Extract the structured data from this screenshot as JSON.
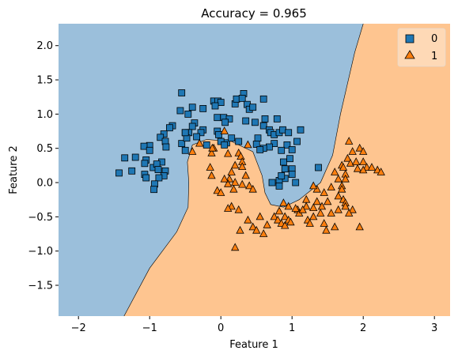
{
  "chart_data": {
    "type": "scatter",
    "title": "Accuracy = 0.965",
    "xlabel": "Feature 1",
    "ylabel": "Feature 2",
    "xlim": [
      -2.28,
      3.22
    ],
    "ylim": [
      -1.95,
      2.32
    ],
    "x_ticks": [
      -2,
      -1,
      0,
      1,
      2,
      3
    ],
    "y_ticks": [
      -1.5,
      -1.0,
      -0.5,
      0.0,
      0.5,
      1.0,
      1.5,
      2.0
    ],
    "x_tick_labels": [
      "−2",
      "−1",
      "0",
      "1",
      "2",
      "3"
    ],
    "y_tick_labels": [
      "−1.5",
      "−1.0",
      "−0.5",
      "0.0",
      "0.5",
      "1.0",
      "1.5",
      "2.0"
    ],
    "grid": false,
    "legend_position": "top-right",
    "region_colors": {
      "0": "#9bbfdb",
      "1": "#fec590"
    },
    "decision_boundary": [
      [
        -1.36,
        -1.95
      ],
      [
        -1.0,
        -1.25
      ],
      [
        -0.62,
        -0.72
      ],
      [
        -0.46,
        -0.36
      ],
      [
        -0.45,
        0.0
      ],
      [
        -0.47,
        0.3
      ],
      [
        -0.4,
        0.55
      ],
      [
        -0.2,
        0.63
      ],
      [
        0.15,
        0.6
      ],
      [
        0.45,
        0.45
      ],
      [
        0.58,
        0.1
      ],
      [
        0.62,
        -0.15
      ],
      [
        0.7,
        -0.32
      ],
      [
        0.88,
        -0.36
      ],
      [
        1.1,
        -0.25
      ],
      [
        1.4,
        0.0
      ],
      [
        1.57,
        0.4
      ],
      [
        1.68,
        1.0
      ],
      [
        1.78,
        1.45
      ],
      [
        1.88,
        1.9
      ],
      [
        2.0,
        2.32
      ]
    ],
    "series": [
      {
        "name": "0",
        "marker": "square",
        "color": "#1f77b4",
        "points": [
          [
            -0.55,
            1.31
          ],
          [
            -0.57,
            1.05
          ],
          [
            -0.46,
            1.0
          ],
          [
            -0.37,
            0.87
          ],
          [
            -0.4,
            0.82
          ],
          [
            -0.45,
            0.73
          ],
          [
            -0.68,
            0.83
          ],
          [
            -0.72,
            0.8
          ],
          [
            -0.8,
            0.71
          ],
          [
            -0.85,
            0.66
          ],
          [
            -0.78,
            0.6
          ],
          [
            -0.77,
            0.52
          ],
          [
            -1.0,
            0.54
          ],
          [
            -1.08,
            0.53
          ],
          [
            -1.0,
            0.47
          ],
          [
            -1.2,
            0.37
          ],
          [
            -1.35,
            0.36
          ],
          [
            -1.05,
            0.33
          ],
          [
            -1.07,
            0.28
          ],
          [
            -0.95,
            0.22
          ],
          [
            -0.83,
            0.3
          ],
          [
            -0.9,
            0.27
          ],
          [
            -0.88,
            0.19
          ],
          [
            -1.25,
            0.17
          ],
          [
            -1.43,
            0.14
          ],
          [
            -1.07,
            0.12
          ],
          [
            -1.05,
            0.07
          ],
          [
            -0.78,
            0.17
          ],
          [
            -0.8,
            0.1
          ],
          [
            -0.87,
            0.07
          ],
          [
            -0.93,
            -0.02
          ],
          [
            -0.94,
            -0.1
          ],
          [
            -0.4,
            1.1
          ],
          [
            -0.25,
            1.08
          ],
          [
            -0.1,
            1.19
          ],
          [
            -0.04,
            1.19
          ],
          [
            0.0,
            1.17
          ],
          [
            -0.08,
            1.12
          ],
          [
            -0.05,
            0.95
          ],
          [
            0.04,
            0.95
          ],
          [
            0.12,
            0.93
          ],
          [
            0.06,
            0.88
          ],
          [
            0.2,
            1.15
          ],
          [
            0.22,
            1.22
          ],
          [
            0.32,
            1.3
          ],
          [
            0.3,
            1.23
          ],
          [
            0.37,
            1.14
          ],
          [
            0.4,
            1.07
          ],
          [
            0.45,
            1.1
          ],
          [
            0.48,
            0.88
          ],
          [
            0.35,
            0.9
          ],
          [
            0.6,
            1.22
          ],
          [
            0.62,
            0.93
          ],
          [
            0.6,
            0.83
          ],
          [
            0.68,
            0.77
          ],
          [
            0.7,
            0.73
          ],
          [
            0.75,
            0.7
          ],
          [
            0.79,
            0.93
          ],
          [
            0.82,
            0.73
          ],
          [
            0.87,
            0.77
          ],
          [
            0.95,
            0.73
          ],
          [
            0.93,
            0.55
          ],
          [
            0.85,
            0.47
          ],
          [
            0.75,
            0.57
          ],
          [
            0.68,
            0.52
          ],
          [
            0.52,
            0.65
          ],
          [
            0.5,
            0.56
          ],
          [
            0.25,
            0.6
          ],
          [
            0.08,
            0.58
          ],
          [
            -0.05,
            0.75
          ],
          [
            -0.03,
            0.7
          ],
          [
            -0.25,
            0.77
          ],
          [
            -0.28,
            0.73
          ],
          [
            -0.34,
            0.67
          ],
          [
            -0.5,
            0.73
          ],
          [
            -0.55,
            0.57
          ],
          [
            -0.5,
            0.47
          ],
          [
            -0.48,
            0.65
          ],
          [
            -0.5,
            0.73
          ],
          [
            1.0,
            0.48
          ],
          [
            0.97,
            0.35
          ],
          [
            0.88,
            0.3
          ],
          [
            0.9,
            0.2
          ],
          [
            1.0,
            0.2
          ],
          [
            1.0,
            0.12
          ],
          [
            0.9,
            0.06
          ],
          [
            0.82,
            0.03
          ],
          [
            0.82,
            -0.05
          ],
          [
            0.72,
            0.0
          ],
          [
            1.12,
            0.77
          ],
          [
            1.37,
            0.22
          ],
          [
            -0.2,
            0.55
          ],
          [
            0.0,
            0.6
          ],
          [
            0.6,
            0.5
          ],
          [
            0.55,
            0.48
          ],
          [
            0.15,
            0.65
          ],
          [
            0.05,
            0.55
          ],
          [
            1.05,
            0.0
          ],
          [
            0.85,
            0.1
          ],
          [
            1.07,
            0.6
          ]
        ]
      },
      {
        "name": "1",
        "marker": "triangle",
        "color": "#ff7f0e",
        "points": [
          [
            0.05,
            0.75
          ],
          [
            -0.4,
            0.45
          ],
          [
            -0.3,
            0.57
          ],
          [
            -0.1,
            0.5
          ],
          [
            -0.13,
            0.43
          ],
          [
            0.1,
            0.42
          ],
          [
            0.25,
            0.43
          ],
          [
            0.38,
            0.55
          ],
          [
            0.28,
            0.38
          ],
          [
            0.3,
            0.3
          ],
          [
            0.3,
            0.23
          ],
          [
            0.2,
            0.25
          ],
          [
            -0.15,
            0.22
          ],
          [
            -0.13,
            0.1
          ],
          [
            -0.12,
            0.5
          ],
          [
            0.15,
            0.15
          ],
          [
            0.12,
            0.05
          ],
          [
            0.1,
            -0.02
          ],
          [
            0.2,
            0.0
          ],
          [
            0.18,
            -0.1
          ],
          [
            0.05,
            0.05
          ],
          [
            -0.05,
            -0.12
          ],
          [
            0.0,
            -0.15
          ],
          [
            0.3,
            -0.03
          ],
          [
            0.4,
            -0.05
          ],
          [
            0.45,
            -0.1
          ],
          [
            0.35,
            0.1
          ],
          [
            0.15,
            -0.35
          ],
          [
            0.1,
            -0.38
          ],
          [
            0.25,
            -0.4
          ],
          [
            0.38,
            -0.55
          ],
          [
            0.27,
            -0.7
          ],
          [
            0.2,
            -0.95
          ],
          [
            0.45,
            -0.65
          ],
          [
            0.5,
            -0.7
          ],
          [
            0.55,
            -0.5
          ],
          [
            0.6,
            -0.75
          ],
          [
            0.65,
            -0.62
          ],
          [
            0.75,
            -0.5
          ],
          [
            0.8,
            -0.55
          ],
          [
            0.82,
            -0.42
          ],
          [
            0.88,
            -0.3
          ],
          [
            0.95,
            -0.35
          ],
          [
            0.9,
            -0.5
          ],
          [
            0.85,
            -0.6
          ],
          [
            0.9,
            -0.63
          ],
          [
            0.95,
            -0.55
          ],
          [
            0.98,
            -0.58
          ],
          [
            1.08,
            -0.4
          ],
          [
            1.1,
            -0.45
          ],
          [
            1.05,
            -0.38
          ],
          [
            1.2,
            -0.35
          ],
          [
            1.3,
            -0.37
          ],
          [
            1.22,
            -0.55
          ],
          [
            1.25,
            -0.6
          ],
          [
            1.3,
            -0.5
          ],
          [
            1.4,
            -0.45
          ],
          [
            1.42,
            -0.35
          ],
          [
            1.35,
            -0.1
          ],
          [
            1.45,
            -0.15
          ],
          [
            1.3,
            -0.05
          ],
          [
            1.2,
            -0.25
          ],
          [
            1.15,
            -0.4
          ],
          [
            1.35,
            -0.28
          ],
          [
            1.5,
            -0.28
          ],
          [
            1.55,
            -0.45
          ],
          [
            1.45,
            -0.6
          ],
          [
            1.6,
            -0.65
          ],
          [
            1.48,
            -0.7
          ],
          [
            1.65,
            -0.2
          ],
          [
            1.55,
            -0.07
          ],
          [
            1.6,
            0.15
          ],
          [
            1.65,
            0.05
          ],
          [
            1.7,
            0.25
          ],
          [
            1.72,
            0.22
          ],
          [
            1.75,
            0.12
          ],
          [
            1.7,
            -0.05
          ],
          [
            1.72,
            -0.25
          ],
          [
            1.75,
            -0.3
          ],
          [
            1.8,
            0.6
          ],
          [
            1.78,
            0.35
          ],
          [
            1.82,
            0.28
          ],
          [
            1.85,
            0.45
          ],
          [
            1.9,
            0.3
          ],
          [
            1.92,
            0.2
          ],
          [
            1.95,
            0.5
          ],
          [
            2.0,
            0.3
          ],
          [
            2.0,
            0.45
          ],
          [
            2.05,
            0.22
          ],
          [
            2.0,
            0.18
          ],
          [
            2.12,
            0.22
          ],
          [
            2.2,
            0.18
          ],
          [
            2.25,
            0.15
          ],
          [
            1.95,
            -0.65
          ],
          [
            1.85,
            -0.4
          ],
          [
            1.75,
            -0.35
          ],
          [
            1.8,
            -0.45
          ],
          [
            1.7,
            -0.1
          ],
          [
            1.75,
            0.05
          ],
          [
            1.65,
            -0.4
          ]
        ]
      }
    ]
  }
}
